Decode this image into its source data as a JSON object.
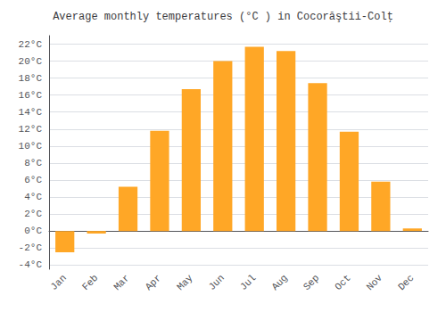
{
  "chart_data": {
    "type": "bar",
    "title": "Average monthly temperatures (°C ) in Cocorăştii-Colţ",
    "categories": [
      "Jan",
      "Feb",
      "Mar",
      "Apr",
      "May",
      "Jun",
      "Jul",
      "Aug",
      "Sep",
      "Oct",
      "Nov",
      "Dec"
    ],
    "values": [
      -2.5,
      -0.3,
      5.2,
      11.8,
      16.7,
      20.0,
      21.7,
      21.2,
      17.4,
      11.7,
      5.8,
      0.3
    ],
    "color": "#FFA726",
    "ylim": [
      -4.5,
      23
    ],
    "yticks": [
      {
        "value": -4,
        "label": "-4°C"
      },
      {
        "value": -2,
        "label": "-2°C"
      },
      {
        "value": 0,
        "label": "0°C"
      },
      {
        "value": 2,
        "label": "2°C"
      },
      {
        "value": 4,
        "label": "4°C"
      },
      {
        "value": 6,
        "label": "6°C"
      },
      {
        "value": 8,
        "label": "8°C"
      },
      {
        "value": 10,
        "label": "10°C"
      },
      {
        "value": 12,
        "label": "12°C"
      },
      {
        "value": 14,
        "label": "14°C"
      },
      {
        "value": 16,
        "label": "16°C"
      },
      {
        "value": 18,
        "label": "18°C"
      },
      {
        "value": 20,
        "label": "20°C"
      },
      {
        "value": 22,
        "label": "22°C"
      }
    ],
    "grid": true
  }
}
